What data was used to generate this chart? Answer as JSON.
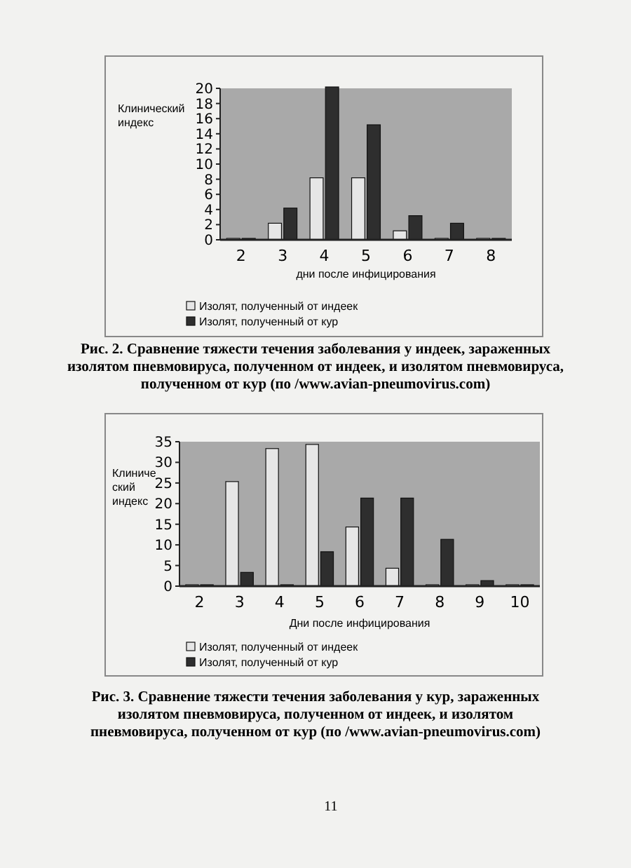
{
  "chart_data": [
    {
      "type": "bar",
      "xlabel": "дни после инфицирования",
      "ylabel": "Клинический индекс",
      "categories": [
        "2",
        "3",
        "4",
        "5",
        "6",
        "7",
        "8"
      ],
      "series": [
        {
          "name": "Изолят, полученный от индеек",
          "color": "#e6e6e6",
          "values": [
            0,
            2,
            8,
            8,
            1,
            0,
            0
          ]
        },
        {
          "name": "Изолят, полученный от кур",
          "color": "#2e2e2e",
          "values": [
            0,
            4,
            20,
            15,
            3,
            2,
            0
          ]
        }
      ],
      "ylim": [
        0,
        20
      ],
      "yticks": [
        0,
        2,
        4,
        6,
        8,
        10,
        12,
        14,
        16,
        18,
        20
      ],
      "legend": "bottom",
      "grid": false,
      "annotations": [
        "Рис. 2. Сравнение тяжести течения заболевания у индеек, зараженных изолятом пневмовируса, полученном от индеек, и изолятом пневмовируса, полученном от кур (по /www.avian-pneumovirus.com)"
      ]
    },
    {
      "type": "bar",
      "xlabel": "Дни после инфицирования",
      "ylabel": "Клинический индекс",
      "categories": [
        "2",
        "3",
        "4",
        "5",
        "6",
        "7",
        "8",
        "9",
        "10"
      ],
      "series": [
        {
          "name": "Изолят, полученный от индеек",
          "color": "#e6e6e6",
          "values": [
            0,
            25,
            33,
            34,
            14,
            4,
            0,
            0,
            0
          ]
        },
        {
          "name": "Изолят, полученный от кур",
          "color": "#2e2e2e",
          "values": [
            0,
            3,
            0,
            8,
            21,
            21,
            11,
            1,
            0
          ]
        }
      ],
      "ylim": [
        0,
        35
      ],
      "yticks": [
        0,
        5,
        10,
        15,
        20,
        25,
        30,
        35
      ],
      "legend": "bottom",
      "grid": false,
      "annotations": [
        "Рис. 3. Сравнение тяжести течения заболевания у кур, зараженных изолятом пневмовируса, полученном от индеек, и изолятом пневмовируса, полученном от кур (по /www.avian-pneumovirus.com)",
        "11"
      ]
    }
  ]
}
